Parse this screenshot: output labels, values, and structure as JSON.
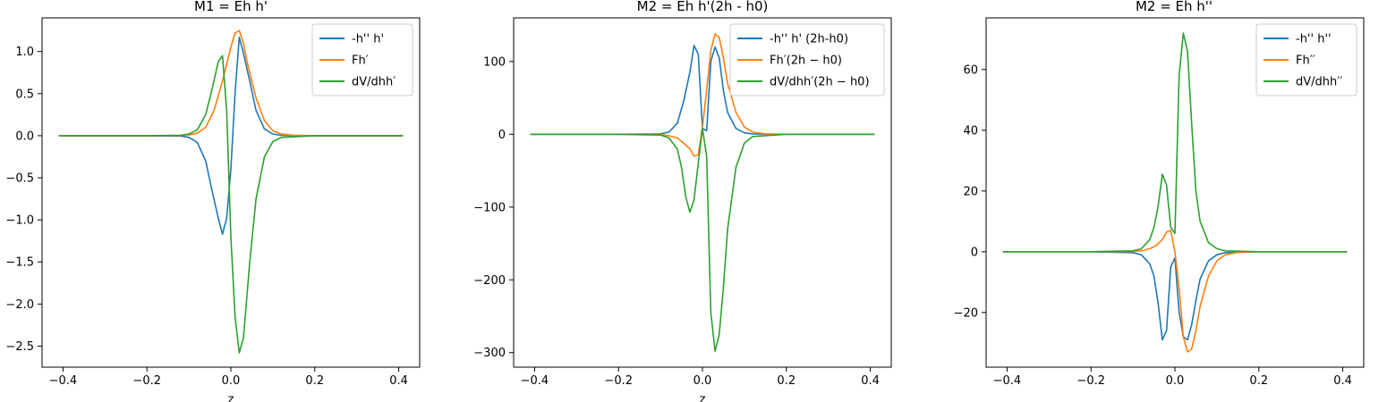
{
  "chart_data": [
    {
      "type": "line",
      "title": "M1 = Eh h'",
      "xlabel": "z",
      "ylabel": "",
      "xlim": [
        -0.45,
        0.45
      ],
      "ylim": [
        -2.75,
        1.4
      ],
      "xticks": [
        -0.4,
        -0.2,
        0.0,
        0.2,
        0.4
      ],
      "xtick_labels": [
        "−0.4",
        "−0.2",
        "0.0",
        "0.2",
        "0.4"
      ],
      "yticks": [
        -2.5,
        -2.0,
        -1.5,
        -1.0,
        -0.5,
        0.0,
        0.5,
        1.0
      ],
      "ytick_labels": [
        "−2.5",
        "−2.0",
        "−1.5",
        "−1.0",
        "−0.5",
        "0.0",
        "0.5",
        "1.0"
      ],
      "legend_position": "top-right",
      "series": [
        {
          "name": "-h'' h'",
          "color": "#1f77b4",
          "x": [
            -0.41,
            -0.2,
            -0.12,
            -0.1,
            -0.08,
            -0.06,
            -0.045,
            -0.03,
            -0.02,
            -0.01,
            0.0,
            0.01,
            0.02,
            0.03,
            0.045,
            0.06,
            0.08,
            0.1,
            0.12,
            0.2,
            0.41
          ],
          "y": [
            0,
            0,
            -0.005,
            -0.02,
            -0.08,
            -0.3,
            -0.65,
            -0.98,
            -1.17,
            -0.98,
            -0.4,
            0.5,
            1.17,
            0.98,
            0.65,
            0.3,
            0.08,
            0.02,
            0.005,
            0,
            0
          ]
        },
        {
          "name": "Fh′",
          "color": "#ff7f0e",
          "x": [
            -0.41,
            -0.2,
            -0.12,
            -0.1,
            -0.08,
            -0.06,
            -0.04,
            -0.02,
            0.0,
            0.01,
            0.02,
            0.03,
            0.04,
            0.06,
            0.08,
            0.1,
            0.12,
            0.15,
            0.2,
            0.41
          ],
          "y": [
            0,
            0,
            0.002,
            0.008,
            0.03,
            0.1,
            0.3,
            0.65,
            1.05,
            1.22,
            1.25,
            1.1,
            0.85,
            0.45,
            0.18,
            0.06,
            0.02,
            0.005,
            0,
            0
          ]
        },
        {
          "name": "dV/dhh′",
          "color": "#2ca02c",
          "x": [
            -0.41,
            -0.2,
            -0.12,
            -0.1,
            -0.08,
            -0.06,
            -0.045,
            -0.03,
            -0.02,
            -0.01,
            0.0,
            0.01,
            0.02,
            0.03,
            0.045,
            0.06,
            0.08,
            0.1,
            0.12,
            0.2,
            0.41
          ],
          "y": [
            0,
            0,
            0.005,
            0.02,
            0.07,
            0.25,
            0.55,
            0.88,
            0.95,
            0.3,
            -1.2,
            -2.15,
            -2.58,
            -2.4,
            -1.5,
            -0.75,
            -0.25,
            -0.07,
            -0.02,
            0,
            0
          ]
        }
      ]
    },
    {
      "type": "line",
      "title": "M2 = Eh h'(2h - h0)",
      "xlabel": "z",
      "ylabel": "",
      "xlim": [
        -0.45,
        0.45
      ],
      "ylim": [
        -320,
        160
      ],
      "xticks": [
        -0.4,
        -0.2,
        0.0,
        0.2,
        0.4
      ],
      "xtick_labels": [
        "−0.4",
        "−0.2",
        "0.0",
        "0.2",
        "0.4"
      ],
      "yticks": [
        -300,
        -200,
        -100,
        0,
        100
      ],
      "ytick_labels": [
        "−300",
        "−200",
        "−100",
        "0",
        "100"
      ],
      "legend_position": "top-right",
      "series": [
        {
          "name": "-h'' h' (2h-h0)",
          "color": "#1f77b4",
          "x": [
            -0.41,
            -0.2,
            -0.1,
            -0.08,
            -0.06,
            -0.045,
            -0.03,
            -0.02,
            -0.01,
            0.0,
            0.01,
            0.02,
            0.03,
            0.04,
            0.05,
            0.06,
            0.08,
            0.1,
            0.12,
            0.2,
            0.41
          ],
          "y": [
            0,
            0,
            0.5,
            3,
            15,
            45,
            85,
            122,
            110,
            8,
            5,
            100,
            120,
            105,
            60,
            30,
            8,
            2,
            0.5,
            0,
            0
          ]
        },
        {
          "name": "Fh′(2h − h0)",
          "color": "#ff7f0e",
          "x": [
            -0.41,
            -0.2,
            -0.1,
            -0.08,
            -0.06,
            -0.045,
            -0.03,
            -0.02,
            -0.01,
            0.0,
            0.01,
            0.02,
            0.03,
            0.04,
            0.05,
            0.06,
            0.08,
            0.1,
            0.12,
            0.15,
            0.2,
            0.41
          ],
          "y": [
            0,
            0,
            -0.5,
            -2,
            -5,
            -12,
            -20,
            -30,
            -28,
            10,
            60,
            115,
            138,
            133,
            105,
            70,
            30,
            10,
            3,
            0.5,
            0,
            0
          ]
        },
        {
          "name": "dV/dhh′(2h − h0)",
          "color": "#2ca02c",
          "x": [
            -0.41,
            -0.2,
            -0.1,
            -0.08,
            -0.06,
            -0.05,
            -0.04,
            -0.03,
            -0.02,
            -0.01,
            0.0,
            0.01,
            0.02,
            0.03,
            0.04,
            0.05,
            0.06,
            0.08,
            0.1,
            0.12,
            0.2,
            0.41
          ],
          "y": [
            0,
            0,
            -1,
            -5,
            -20,
            -45,
            -85,
            -107,
            -90,
            -40,
            8,
            -30,
            -245,
            -298,
            -275,
            -210,
            -130,
            -45,
            -12,
            -3,
            0,
            0
          ]
        }
      ]
    },
    {
      "type": "line",
      "title": "M2 = Eh h''",
      "xlabel": "",
      "ylabel": "",
      "xlim": [
        -0.45,
        0.45
      ],
      "ylim": [
        -38,
        77
      ],
      "xticks": [
        -0.4,
        -0.2,
        0.0,
        0.2,
        0.4
      ],
      "xtick_labels": [
        "−0.4",
        "−0.2",
        "0.0",
        "0.2",
        "0.4"
      ],
      "yticks": [
        -20,
        0,
        20,
        40,
        60
      ],
      "ytick_labels": [
        "−20",
        "0",
        "20",
        "40",
        "60"
      ],
      "legend_position": "top-right",
      "series": [
        {
          "name": "-h'' h''",
          "color": "#1f77b4",
          "x": [
            -0.41,
            -0.2,
            -0.1,
            -0.08,
            -0.06,
            -0.05,
            -0.04,
            -0.03,
            -0.02,
            -0.01,
            0.0,
            0.01,
            0.02,
            0.03,
            0.04,
            0.05,
            0.06,
            0.08,
            0.1,
            0.12,
            0.2,
            0.41
          ],
          "y": [
            0,
            0,
            -0.3,
            -1,
            -4,
            -8,
            -17,
            -29,
            -26,
            -5,
            -2,
            -20,
            -28,
            -29,
            -24,
            -16,
            -9,
            -3,
            -1,
            -0.3,
            0,
            0
          ]
        },
        {
          "name": "Fh′′",
          "color": "#ff7f0e",
          "x": [
            -0.41,
            -0.2,
            -0.1,
            -0.08,
            -0.06,
            -0.045,
            -0.03,
            -0.02,
            -0.01,
            0.0,
            0.01,
            0.02,
            0.03,
            0.04,
            0.05,
            0.06,
            0.08,
            0.1,
            0.12,
            0.15,
            0.2,
            0.41
          ],
          "y": [
            0,
            0,
            0.1,
            0.3,
            1,
            2,
            4,
            6.5,
            7,
            0,
            -12,
            -28,
            -33,
            -32,
            -26,
            -18,
            -8,
            -3,
            -1,
            -0.2,
            0,
            0
          ]
        },
        {
          "name": "dV/dhh′′",
          "color": "#2ca02c",
          "x": [
            -0.41,
            -0.2,
            -0.1,
            -0.08,
            -0.06,
            -0.05,
            -0.04,
            -0.03,
            -0.02,
            -0.01,
            0.0,
            0.01,
            0.02,
            0.03,
            0.04,
            0.05,
            0.06,
            0.08,
            0.1,
            0.12,
            0.2,
            0.41
          ],
          "y": [
            0,
            0,
            0.3,
            1,
            4,
            8,
            15,
            25.5,
            22,
            8,
            6,
            58,
            72,
            66,
            42,
            20,
            10,
            3,
            1,
            0.3,
            0,
            0
          ]
        }
      ]
    }
  ]
}
